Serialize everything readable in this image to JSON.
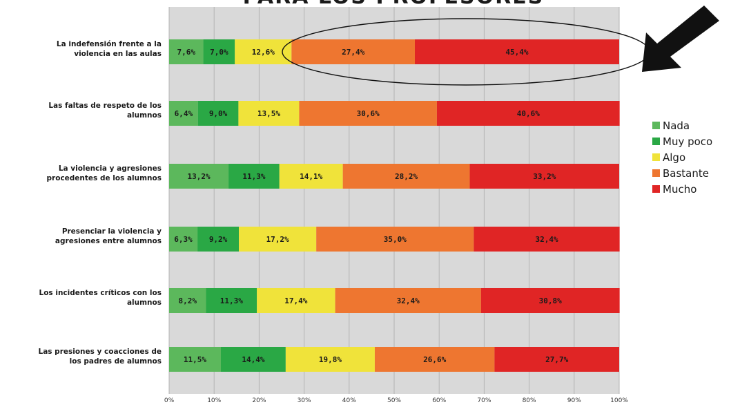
{
  "chart_data": {
    "type": "bar",
    "orientation": "horizontal",
    "stacked": true,
    "title": "PARA LOS PROFESORES",
    "categories": [
      "La indefensión frente a la violencia en las aulas",
      "Las faltas de respeto de los alumnos",
      "La violencia y agresiones procedentes de los alumnos",
      "Presenciar la violencia y agresiones entre alumnos",
      "Los incidentes críticos con los alumnos",
      "Las presiones y coacciones de los padres de alumnos"
    ],
    "category_lines": [
      [
        "La indefensión frente a la",
        "violencia en las aulas"
      ],
      [
        "Las faltas de respeto de los",
        "alumnos"
      ],
      [
        "La violencia y agresiones",
        "procedentes de los alumnos"
      ],
      [
        "Presenciar la violencia y",
        "agresiones entre alumnos"
      ],
      [
        "Los incidentes críticos con los",
        "alumnos"
      ],
      [
        "Las presiones y coacciones de",
        "los padres de alumnos"
      ]
    ],
    "series": [
      {
        "name": "Nada",
        "color": "#5cb85c",
        "values": [
          7.6,
          6.4,
          13.2,
          6.3,
          8.2,
          11.5
        ],
        "labels": [
          "7,6%",
          "6,4%",
          "13,2%",
          "6,3%",
          "8,2%",
          "11,5%"
        ]
      },
      {
        "name": "Muy poco",
        "color": "#2aa845",
        "values": [
          7.0,
          9.0,
          11.3,
          9.2,
          11.3,
          14.4
        ],
        "labels": [
          "7,0%",
          "9,0%",
          "11,3%",
          "9,2%",
          "11,3%",
          "14,4%"
        ]
      },
      {
        "name": "Algo",
        "color": "#f0e33a",
        "values": [
          12.6,
          13.5,
          14.1,
          17.2,
          17.4,
          19.8
        ],
        "labels": [
          "12,6%",
          "13,5%",
          "14,1%",
          "17,2%",
          "17,4%",
          "19,8%"
        ]
      },
      {
        "name": "Bastante",
        "color": "#ee7630",
        "values": [
          27.4,
          30.6,
          28.2,
          35.0,
          32.4,
          26.6
        ],
        "labels": [
          "27,4%",
          "30,6%",
          "28,2%",
          "35,0%",
          "32,4%",
          "26,6%"
        ]
      },
      {
        "name": "Mucho",
        "color": "#e02525",
        "values": [
          45.4,
          40.6,
          33.2,
          32.4,
          30.8,
          27.7
        ],
        "labels": [
          "45,4%",
          "40,6%",
          "33,2%",
          "32,4%",
          "30,8%",
          "27,7%"
        ]
      }
    ],
    "x_ticks": [
      "0%",
      "10%",
      "20%",
      "30%",
      "40%",
      "50%",
      "60%",
      "70%",
      "80%",
      "90%",
      "100%"
    ],
    "xlim": [
      0,
      100
    ],
    "grid": true,
    "legend_position": "right",
    "annotation": "ellipse and arrow highlighting Bastante and Mucho of the first row"
  }
}
